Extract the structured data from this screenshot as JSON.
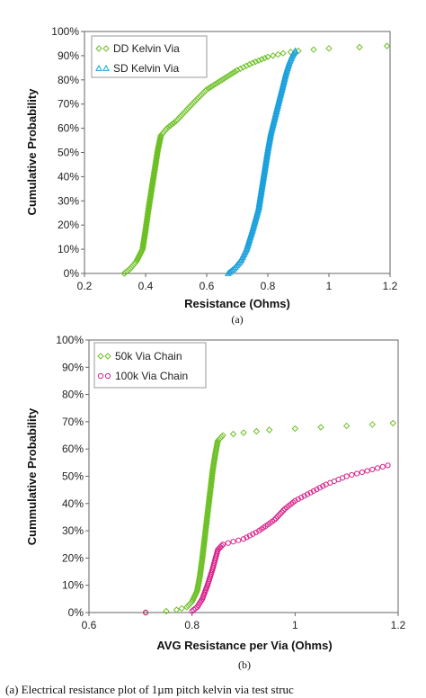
{
  "chart_data": [
    {
      "type": "scatter",
      "caption": "(a)",
      "xlabel": "Resistance (Ohms)",
      "ylabel": "Cumulative Probability",
      "xlim": [
        0.2,
        1.2
      ],
      "ylim": [
        0,
        100
      ],
      "xticks": [
        "0.2",
        "0.4",
        "0.6",
        "0.8",
        "1",
        "1.2"
      ],
      "yticks": [
        "0%",
        "10%",
        "20%",
        "30%",
        "40%",
        "50%",
        "60%",
        "70%",
        "80%",
        "90%",
        "100%"
      ],
      "grid": false,
      "legend_position": "top-left",
      "series": [
        {
          "name": "DD Kelvin Via",
          "marker": "diamond",
          "color": "#6cc024",
          "x": [
            0.33,
            0.35,
            0.37,
            0.39,
            0.4,
            0.41,
            0.42,
            0.43,
            0.44,
            0.45,
            0.47,
            0.5,
            0.53,
            0.56,
            0.6,
            0.65,
            0.7,
            0.75,
            0.8,
            0.85,
            0.9,
            0.95,
            1.0,
            1.1,
            1.19
          ],
          "y": [
            0,
            2,
            5,
            10,
            18,
            27,
            35,
            43,
            51,
            57,
            60,
            63,
            67,
            71,
            76,
            80,
            84,
            87,
            89.5,
            91,
            92,
            92.5,
            93,
            93.5,
            94
          ]
        },
        {
          "name": "SD Kelvin Via",
          "marker": "triangle",
          "color": "#1aa0dc",
          "x": [
            0.67,
            0.69,
            0.71,
            0.73,
            0.75,
            0.77,
            0.78,
            0.79,
            0.8,
            0.81,
            0.82,
            0.83,
            0.84,
            0.85,
            0.86,
            0.87,
            0.88,
            0.89
          ],
          "y": [
            0,
            2,
            5,
            10,
            18,
            27,
            35,
            43,
            51,
            58,
            63,
            68,
            73,
            78,
            83,
            87,
            90,
            92
          ]
        }
      ]
    },
    {
      "type": "scatter",
      "caption": "(b)",
      "xlabel": "AVG Resistance per Via (Ohms)",
      "ylabel": "Cummulative Probability",
      "xlim": [
        0.6,
        1.2
      ],
      "ylim": [
        0,
        100
      ],
      "xticks": [
        "0.6",
        "0.8",
        "1",
        "1.2"
      ],
      "yticks": [
        "0%",
        "10%",
        "20%",
        "30%",
        "40%",
        "50%",
        "60%",
        "70%",
        "80%",
        "90%",
        "100%"
      ],
      "grid": false,
      "legend_position": "top-left",
      "series": [
        {
          "name": "50k Via Chain",
          "marker": "diamond",
          "color": "#6cc024",
          "x": [
            0.71,
            0.75,
            0.77,
            0.79,
            0.8,
            0.81,
            0.815,
            0.82,
            0.825,
            0.83,
            0.835,
            0.84,
            0.845,
            0.85,
            0.86,
            0.9,
            0.95,
            1.0,
            1.05,
            1.1,
            1.15,
            1.19
          ],
          "y": [
            0,
            0.5,
            1,
            2,
            4,
            8,
            13,
            20,
            28,
            36,
            44,
            52,
            58,
            63,
            65,
            66,
            67,
            67.5,
            68,
            68.5,
            69,
            69.5
          ]
        },
        {
          "name": "100k Via Chain",
          "marker": "circle",
          "color": "#d8208a",
          "x": [
            0.71,
            0.8,
            0.81,
            0.82,
            0.83,
            0.84,
            0.85,
            0.86,
            0.88,
            0.9,
            0.93,
            0.96,
            0.98,
            1.0,
            1.03,
            1.06,
            1.1,
            1.14,
            1.18
          ],
          "y": [
            0,
            0.5,
            2,
            5,
            10,
            16,
            23,
            25,
            26,
            27,
            30,
            34,
            38,
            41,
            44,
            47,
            50,
            52,
            54
          ]
        }
      ]
    }
  ],
  "figure_caption": "(a) Electrical resistance plot of 1µm pitch kelvin via test struc"
}
